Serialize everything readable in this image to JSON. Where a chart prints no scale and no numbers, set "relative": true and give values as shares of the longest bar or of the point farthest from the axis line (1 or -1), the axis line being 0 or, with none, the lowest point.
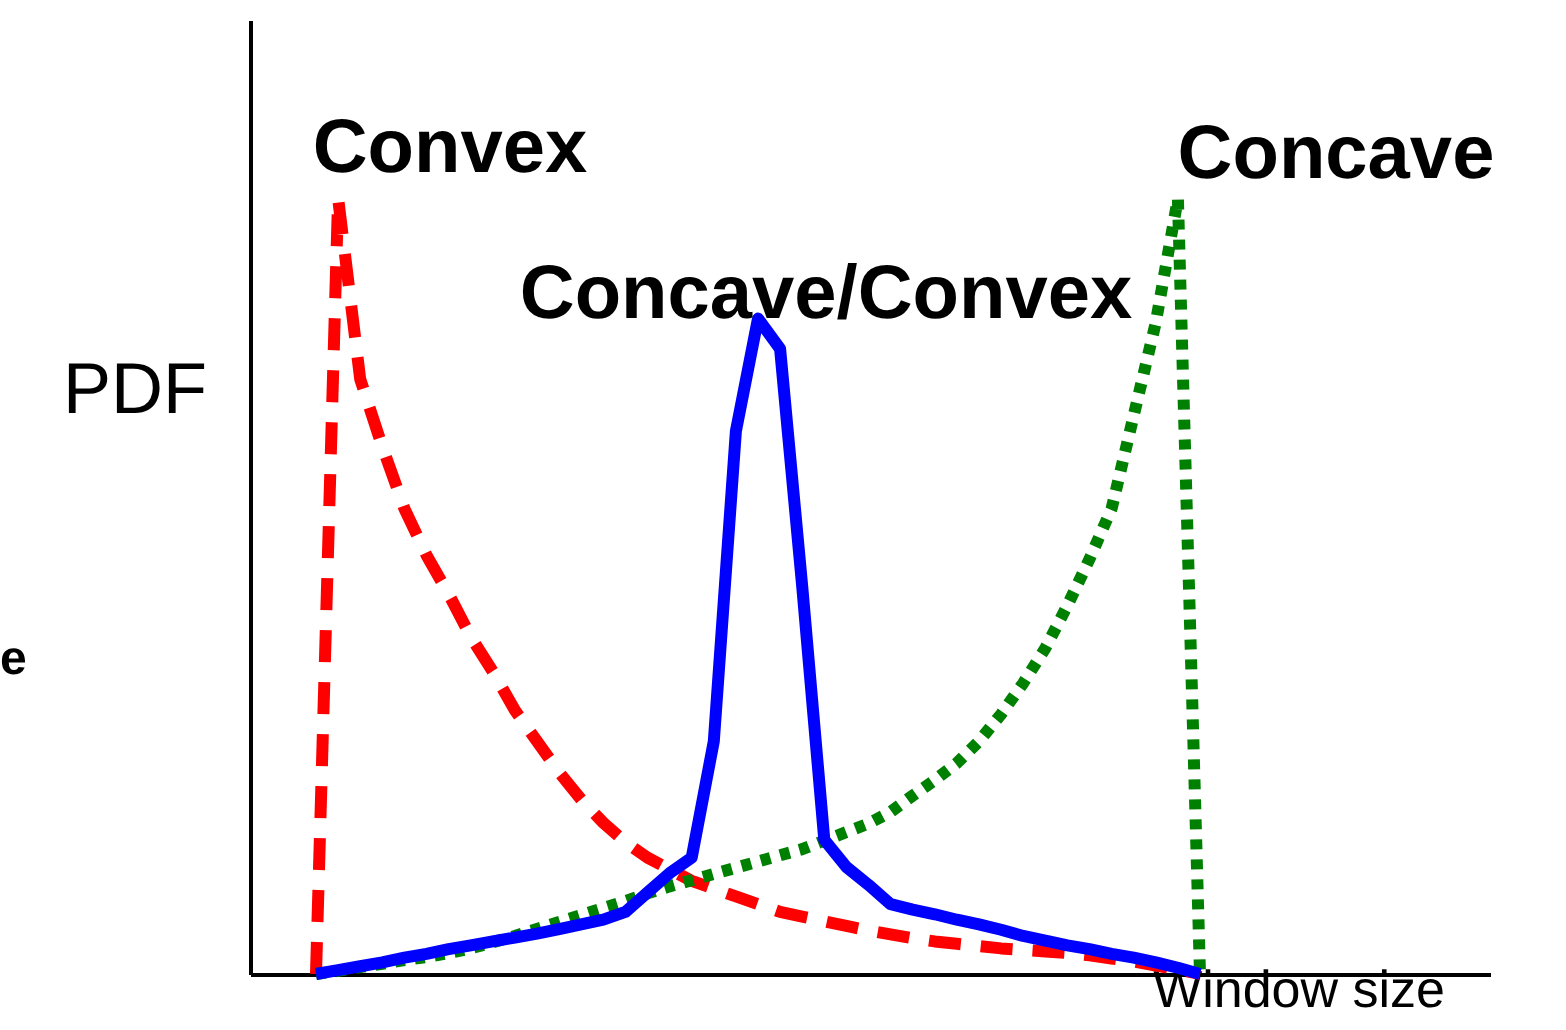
{
  "chart_data": {
    "type": "line",
    "relative": true,
    "xlabel": "Window size",
    "ylabel": "PDF",
    "grid": false,
    "marker": "none",
    "annotations": [
      "Convex",
      "Concave",
      "Concave/Convex",
      "e"
    ],
    "categories": [
      null,
      null,
      null,
      null,
      null,
      null,
      null,
      null,
      null,
      null,
      null,
      null,
      null,
      null,
      null,
      null,
      null,
      null,
      null,
      null,
      null,
      null,
      null,
      null,
      null,
      null,
      null,
      null,
      null,
      null,
      null,
      null,
      null,
      null,
      null,
      null,
      null,
      null,
      null,
      null,
      null
    ],
    "series": [
      {
        "color": "#ff0000",
        "line_style": "dashed",
        "values": [
          0,
          1.0,
          0.767,
          0.68,
          0.6,
          0.54,
          0.49,
          0.435,
          0.39,
          0.34,
          0.3,
          0.26,
          0.225,
          0.195,
          0.17,
          0.15,
          0.135,
          0.12,
          0.11,
          0.1,
          0.09,
          0.08,
          0.074,
          0.068,
          0.062,
          0.056,
          0.051,
          0.046,
          0.042,
          0.039,
          0.036,
          0.033,
          0.031,
          0.029,
          0.027,
          0.024,
          0.02,
          0.016,
          0.011,
          0.006,
          0
        ]
      },
      {
        "color": "#008000",
        "line_style": "dotted",
        "values": [
          0,
          0.004,
          0.009,
          0.013,
          0.018,
          0.022,
          0.027,
          0.033,
          0.041,
          0.049,
          0.058,
          0.067,
          0.076,
          0.085,
          0.094,
          0.104,
          0.113,
          0.121,
          0.129,
          0.137,
          0.145,
          0.153,
          0.161,
          0.172,
          0.183,
          0.194,
          0.209,
          0.23,
          0.25,
          0.272,
          0.3,
          0.335,
          0.375,
          0.42,
          0.475,
          0.535,
          0.6,
          0.72,
          0.84,
          1.0,
          0
        ]
      },
      {
        "color": "#0000ff",
        "line_style": "solid",
        "values": [
          0,
          0.005,
          0.01,
          0.015,
          0.021,
          0.026,
          0.032,
          0.037,
          0.042,
          0.047,
          0.052,
          0.058,
          0.064,
          0.07,
          0.08,
          0.105,
          0.13,
          0.15,
          0.3,
          0.7,
          0.845,
          0.806,
          0.5,
          0.173,
          0.138,
          0.115,
          0.09,
          0.083,
          0.077,
          0.07,
          0.064,
          0.057,
          0.049,
          0.043,
          0.037,
          0.032,
          0.026,
          0.021,
          0.015,
          0.008,
          0
        ]
      }
    ]
  }
}
